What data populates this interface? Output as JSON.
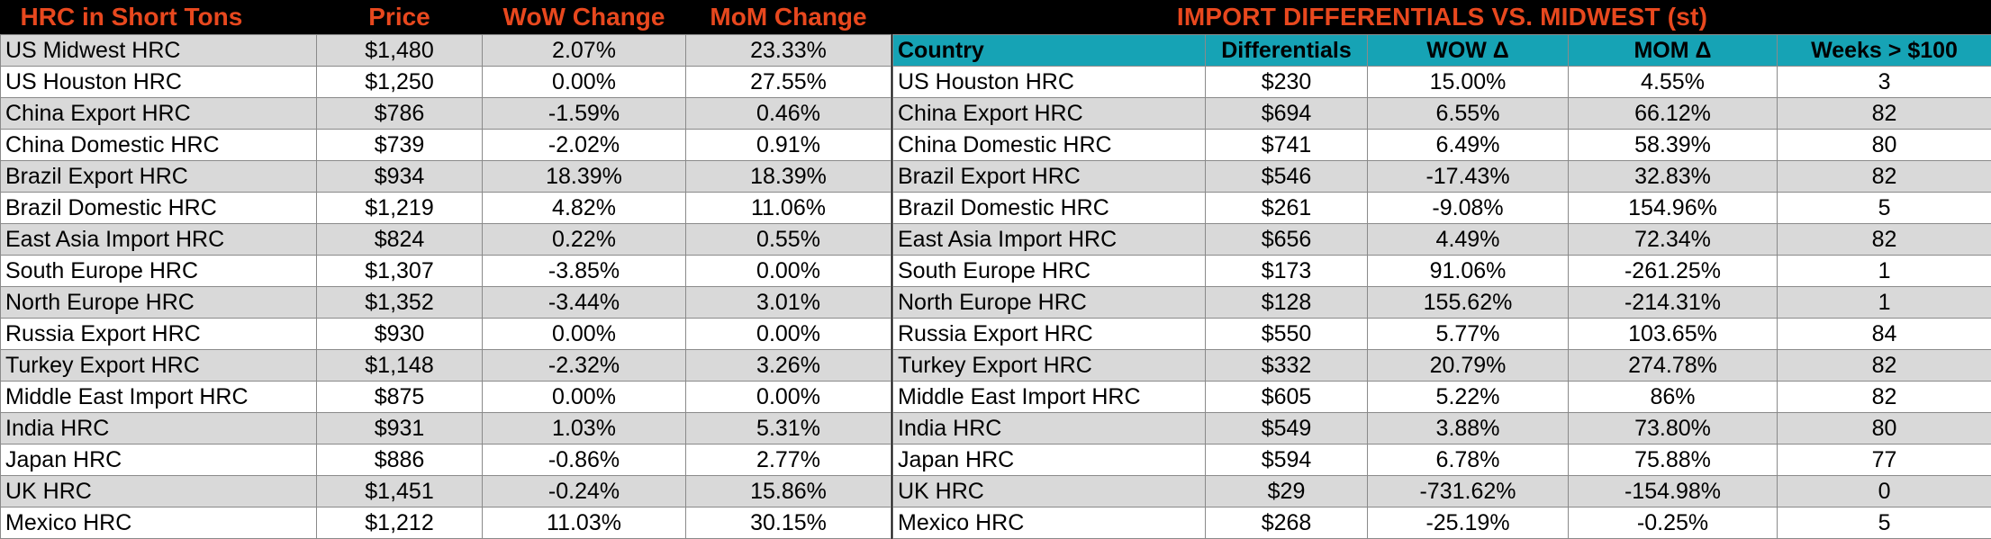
{
  "left_table": {
    "headers": [
      "HRC in Short Tons",
      "Price",
      "WoW Change",
      "MoM Change"
    ],
    "rows": [
      [
        "US Midwest HRC",
        "$1,480",
        "2.07%",
        "23.33%"
      ],
      [
        "US Houston HRC",
        "$1,250",
        "0.00%",
        "27.55%"
      ],
      [
        "China Export HRC",
        "$786",
        "-1.59%",
        "0.46%"
      ],
      [
        "China Domestic HRC",
        "$739",
        "-2.02%",
        "0.91%"
      ],
      [
        "Brazil Export HRC",
        "$934",
        "18.39%",
        "18.39%"
      ],
      [
        "Brazil Domestic HRC",
        "$1,219",
        "4.82%",
        "11.06%"
      ],
      [
        "East Asia Import HRC",
        "$824",
        "0.22%",
        "0.55%"
      ],
      [
        "South Europe HRC",
        "$1,307",
        "-3.85%",
        "0.00%"
      ],
      [
        "North Europe HRC",
        "$1,352",
        "-3.44%",
        "3.01%"
      ],
      [
        "Russia Export HRC",
        "$930",
        "0.00%",
        "0.00%"
      ],
      [
        "Turkey Export HRC",
        "$1,148",
        "-2.32%",
        "3.26%"
      ],
      [
        "Middle East Import HRC",
        "$875",
        "0.00%",
        "0.00%"
      ],
      [
        "India HRC",
        "$931",
        "1.03%",
        "5.31%"
      ],
      [
        "Japan HRC",
        "$886",
        "-0.86%",
        "2.77%"
      ],
      [
        "UK HRC",
        "$1,451",
        "-0.24%",
        "15.86%"
      ],
      [
        "Mexico HRC",
        "$1,212",
        "11.03%",
        "30.15%"
      ]
    ]
  },
  "right_table": {
    "title": "IMPORT DIFFERENTIALS VS. MIDWEST (st)",
    "headers": [
      "Country",
      "Differentials",
      "WOW Δ",
      "MOM Δ",
      "Weeks > $100"
    ],
    "rows": [
      [
        "US Houston HRC",
        "$230",
        "15.00%",
        "4.55%",
        "3"
      ],
      [
        "China Export HRC",
        "$694",
        "6.55%",
        "66.12%",
        "82"
      ],
      [
        "China Domestic HRC",
        "$741",
        "6.49%",
        "58.39%",
        "80"
      ],
      [
        "Brazil Export HRC",
        "$546",
        "-17.43%",
        "32.83%",
        "82"
      ],
      [
        "Brazil Domestic HRC",
        "$261",
        "-9.08%",
        "154.96%",
        "5"
      ],
      [
        "East Asia Import HRC",
        "$656",
        "4.49%",
        "72.34%",
        "82"
      ],
      [
        "South Europe HRC",
        "$173",
        "91.06%",
        "-261.25%",
        "1"
      ],
      [
        "North Europe HRC",
        "$128",
        "155.62%",
        "-214.31%",
        "1"
      ],
      [
        "Russia Export HRC",
        "$550",
        "5.77%",
        "103.65%",
        "84"
      ],
      [
        "Turkey Export HRC",
        "$332",
        "20.79%",
        "274.78%",
        "82"
      ],
      [
        "Middle East Import HRC",
        "$605",
        "5.22%",
        "86%",
        "82"
      ],
      [
        "India HRC",
        "$549",
        "3.88%",
        "73.80%",
        "80"
      ],
      [
        "Japan HRC",
        "$594",
        "6.78%",
        "75.88%",
        "77"
      ],
      [
        "UK HRC",
        "$29",
        "-731.62%",
        "-154.98%",
        "0"
      ],
      [
        "Mexico HRC",
        "$268",
        "-25.19%",
        "-0.25%",
        "5"
      ]
    ]
  },
  "colors": {
    "header_text": "#e8481e",
    "header_background": "#000000",
    "column_header_background": "#16a3b5",
    "stripe_grey": "#d9d9d9",
    "stripe_white": "#ffffff"
  }
}
